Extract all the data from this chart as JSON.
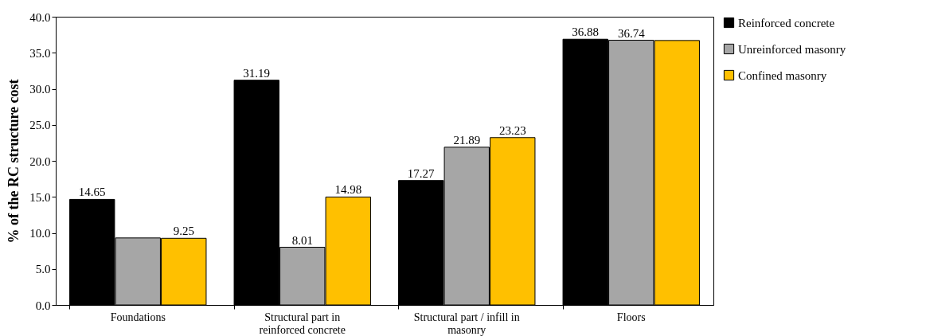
{
  "chart_data": {
    "type": "bar",
    "ylabel": "% of the RC structure cost",
    "categories": [
      "Foundations",
      "Structural part in reinforced concrete",
      "Structural part / infill in masonry",
      "Floors"
    ],
    "series": [
      {
        "name": "Reinforced concrete",
        "color": "#000000",
        "values": [
          14.65,
          31.19,
          17.27,
          36.88
        ],
        "value_labels": [
          "14.65",
          "31.19",
          "17.27",
          "36.88"
        ]
      },
      {
        "name": "Unreinforced masonry",
        "color": "#a6a6a6",
        "values": [
          9.3,
          8.01,
          21.89,
          36.74
        ],
        "value_labels": [
          null,
          "8.01",
          "21.89",
          "36.74"
        ]
      },
      {
        "name": "Confined masonry",
        "color": "#ffc000",
        "values": [
          9.25,
          14.98,
          23.23,
          36.7
        ],
        "value_labels": [
          "9.25",
          "14.98",
          "23.23",
          null
        ]
      }
    ],
    "ylim": [
      0,
      40
    ],
    "yticks": [
      {
        "value": 0,
        "label": "0.0"
      },
      {
        "value": 5,
        "label": "5.0"
      },
      {
        "value": 10,
        "label": "10.0"
      },
      {
        "value": 15,
        "label": "15.0"
      },
      {
        "value": 20,
        "label": "20.0"
      },
      {
        "value": 25,
        "label": "25.0"
      },
      {
        "value": 30,
        "label": "30.0"
      },
      {
        "value": 35,
        "label": "35.0"
      },
      {
        "value": 40,
        "label": "40.0"
      }
    ],
    "grid": false,
    "legend": "right"
  }
}
